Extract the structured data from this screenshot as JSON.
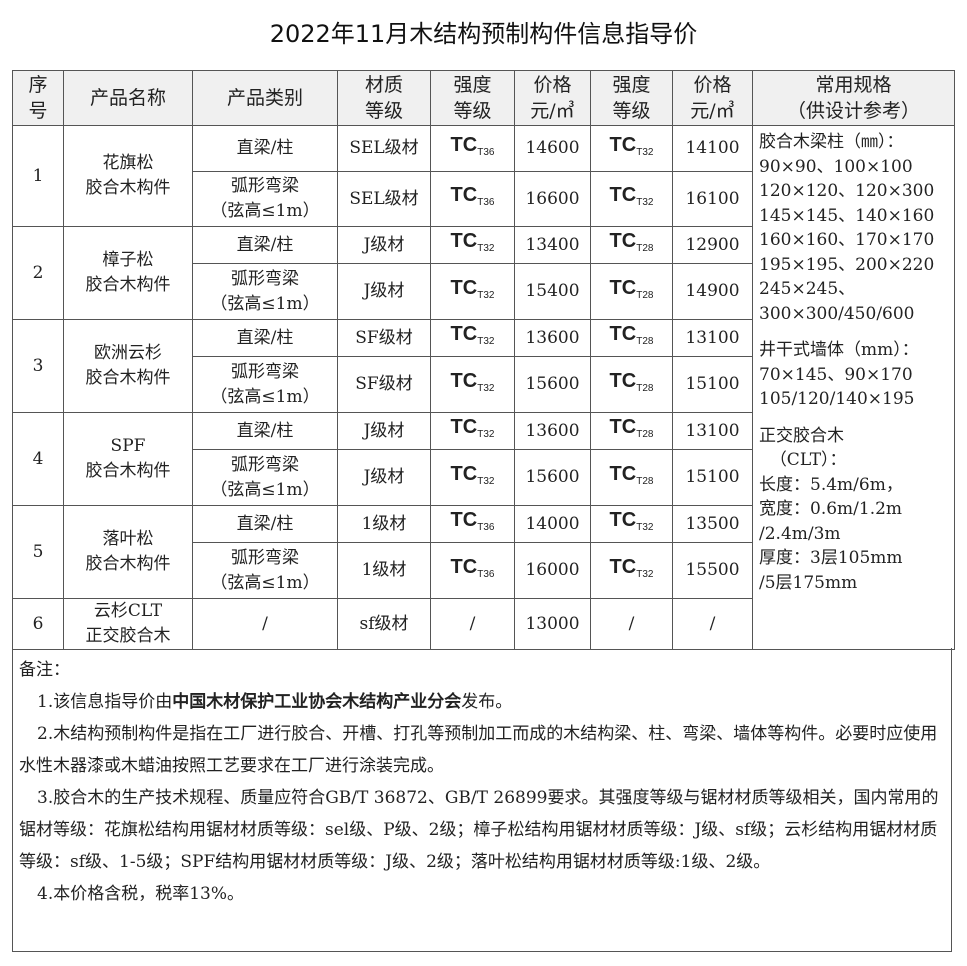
{
  "title": "2022年11月木结构预制构件信息指导价",
  "headers": [
    "序号",
    "产品名称",
    "产品类别",
    "材质等级",
    "强度等级",
    "价格元/㎥",
    "强度等级",
    "价格元/㎥",
    "常用规格（供设计参考）"
  ],
  "header_lines": {
    "seq": [
      "序",
      "号"
    ],
    "name": "产品名称",
    "category": "产品类别",
    "material": [
      "材质",
      "等级"
    ],
    "strength1": [
      "强度",
      "等级"
    ],
    "price1": [
      "价格",
      "元/㎥"
    ],
    "strength2": [
      "强度",
      "等级"
    ],
    "price2": [
      "价格",
      "元/㎥"
    ],
    "spec": [
      "常用规格",
      "（供设计参考）"
    ]
  },
  "groups": [
    {
      "no": "1",
      "name": [
        "花旗松",
        "胶合木构件"
      ],
      "rows": [
        {
          "cat": [
            "直梁/柱"
          ],
          "material": "SEL级材",
          "s1": "T36",
          "p1": "14600",
          "s2": "T32",
          "p2": "14100"
        },
        {
          "cat": [
            "弧形弯梁",
            "（弦高≤1m）"
          ],
          "material": "SEL级材",
          "s1": "T36",
          "p1": "16600",
          "s2": "T32",
          "p2": "16100"
        }
      ]
    },
    {
      "no": "2",
      "name": [
        "樟子松",
        "胶合木构件"
      ],
      "rows": [
        {
          "cat": [
            "直梁/柱"
          ],
          "material": "J级材",
          "s1": "T32",
          "p1": "13400",
          "s2": "T28",
          "p2": "12900"
        },
        {
          "cat": [
            "弧形弯梁",
            "（弦高≤1m）"
          ],
          "material": "J级材",
          "s1": "T32",
          "p1": "15400",
          "s2": "T28",
          "p2": "14900"
        }
      ]
    },
    {
      "no": "3",
      "name": [
        "欧洲云杉",
        "胶合木构件"
      ],
      "rows": [
        {
          "cat": [
            "直梁/柱"
          ],
          "material": "SF级材",
          "s1": "T32",
          "p1": "13600",
          "s2": "T28",
          "p2": "13100"
        },
        {
          "cat": [
            "弧形弯梁",
            "（弦高≤1m）"
          ],
          "material": "SF级材",
          "s1": "T32",
          "p1": "15600",
          "s2": "T28",
          "p2": "15100"
        }
      ]
    },
    {
      "no": "4",
      "name": [
        "SPF",
        "胶合木构件"
      ],
      "rows": [
        {
          "cat": [
            "直梁/柱"
          ],
          "material": "J级材",
          "s1": "T32",
          "p1": "13600",
          "s2": "T28",
          "p2": "13100"
        },
        {
          "cat": [
            "弧形弯梁",
            "（弦高≤1m）"
          ],
          "material": "J级材",
          "s1": "T32",
          "p1": "15600",
          "s2": "T28",
          "p2": "15100"
        }
      ]
    },
    {
      "no": "5",
      "name": [
        "落叶松",
        "胶合木构件"
      ],
      "rows": [
        {
          "cat": [
            "直梁/柱"
          ],
          "material": "1级材",
          "s1": "T36",
          "p1": "14000",
          "s2": "T32",
          "p2": "13500"
        },
        {
          "cat": [
            "弧形弯梁",
            "（弦高≤1m）"
          ],
          "material": "1级材",
          "s1": "T36",
          "p1": "16000",
          "s2": "T32",
          "p2": "15500"
        }
      ]
    }
  ],
  "row6": {
    "no": "6",
    "name": [
      "云杉CLT",
      "正交胶合木"
    ],
    "cat": "/",
    "material": "sf级材",
    "s1": "/",
    "p1": "13000",
    "s2": "/",
    "p2": "/"
  },
  "tc_prefix": "TC",
  "spec": {
    "beams_title": "胶合木梁柱（㎜）：",
    "beams": [
      "90×90、100×100",
      "120×120、120×300",
      "145×145、140×160",
      "160×160、170×170",
      "195×195、200×220",
      "245×245、",
      "300×300/450/600"
    ],
    "wall_title": "井干式墙体（mm）：",
    "wall": [
      "70×145、90×170",
      "105/120/140×195"
    ],
    "clt_title": [
      "正交胶合木",
      "（CLT）："
    ],
    "clt": [
      "长度：5.4m/6m，",
      "宽度：0.6m/1.2m",
      "/2.4m/3m",
      "厚度：3层105mm",
      "/5层175mm"
    ]
  },
  "notes": {
    "label": "备注：",
    "n1_pre": "1.该信息指导价由",
    "n1_bold": "中国木材保护工业协会木结构产业分会",
    "n1_post": "发布。",
    "n2": "2.木结构预制构件是指在工厂进行胶合、开槽、打孔等预制加工而成的木结构梁、柱、弯梁、墙体等构件。必要时应使用水性木器漆或木蜡油按照工艺要求在工厂进行涂装完成。",
    "n3": "3.胶合木的生产技术规程、质量应符合GB/T 36872、GB/T 26899要求。其强度等级与锯材材质等级相关，国内常用的锯材等级：花旗松结构用锯材材质等级：sel级、P级、2级；樟子松结构用锯材材质等级：J级、sf级；云杉结构用锯材材质等级：sf级、1-5级；SPF结构用锯材材质等级：J级、2级；落叶松结构用锯材材质等级:1级、2级。",
    "n4": "4.本价格含税，税率13%。"
  }
}
